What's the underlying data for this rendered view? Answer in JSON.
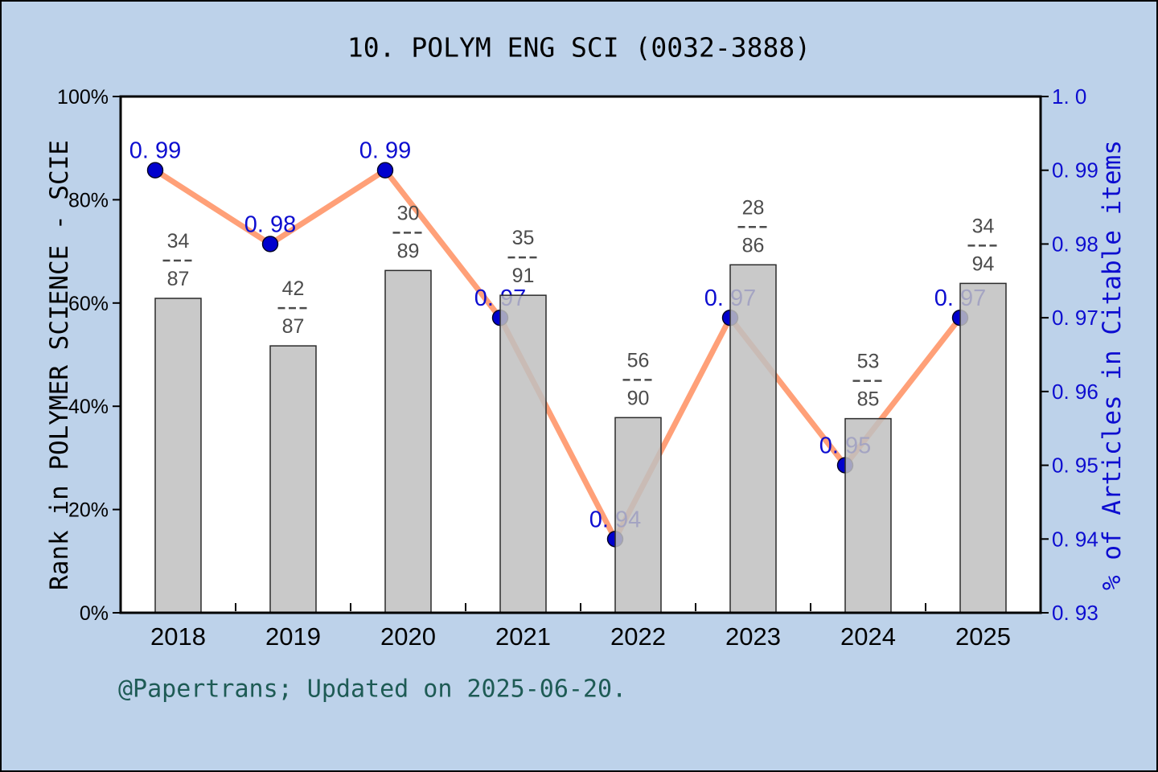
{
  "title": "10. POLYM ENG SCI (0032-3888)",
  "footer": "@Papertrans; Updated on 2025-06-20.",
  "colors": {
    "canvas_background": "#bdd2ea",
    "plot_background": "#ffffff",
    "axis_black": "#000000",
    "bar_gray": "#c0c0c0",
    "bar_edge": "#2b2b2b",
    "fraction_gray": "#4c4c4c",
    "line_salmon": "#ffa078",
    "marker_blue": "#0000cd",
    "value_blue": "#0d0dd0",
    "footer_teal": "#1e5b55"
  },
  "chart_data": {
    "type": "bar",
    "title": "10. POLYM ENG SCI (0032-3888)",
    "categories": [
      "2018",
      "2019",
      "2020",
      "2021",
      "2022",
      "2023",
      "2024",
      "2025"
    ],
    "series": [
      {
        "name": "Rank in POLYMER SCIENCE - SCIE",
        "type": "bar",
        "axis": "left",
        "values_percent": [
          60.9,
          51.7,
          66.3,
          61.5,
          37.8,
          67.4,
          37.6,
          63.8
        ],
        "numerators": [
          "34",
          "42",
          "30",
          "35",
          "56",
          "28",
          "53",
          "34"
        ],
        "denominators": [
          "87",
          "87",
          "89",
          "91",
          "90",
          "86",
          "85",
          "94"
        ],
        "fraction_labels": [
          "34/87",
          "42/87",
          "30/89",
          "35/91",
          "56/90",
          "28/86",
          "53/85",
          "34/94"
        ]
      },
      {
        "name": "% of Articles in Citable items",
        "type": "line",
        "axis": "right",
        "values": [
          0.99,
          0.98,
          0.99,
          0.97,
          0.94,
          0.97,
          0.95,
          0.97
        ],
        "point_labels": [
          "0. 99",
          "0. 98",
          "0. 99",
          "0. 97",
          "0. 94",
          "0. 97",
          "0. 95",
          "0. 97"
        ]
      }
    ],
    "left_axis": {
      "label": "Rank in POLYMER SCIENCE - SCIE",
      "ticks": [
        "100%",
        "80%",
        "60%",
        "40%",
        "20%",
        "0%"
      ],
      "range": [
        0,
        100
      ]
    },
    "right_axis": {
      "label": "% of Articles in Citable items",
      "ticks": [
        "1. 0",
        "0. 99",
        "0. 98",
        "0. 97",
        "0. 96",
        "0. 95",
        "0. 94",
        "0. 93"
      ],
      "range": [
        0.93,
        1.0
      ]
    },
    "x_axis": {
      "minor_ticks_between_years": true
    },
    "grid": false,
    "legend": "none"
  }
}
